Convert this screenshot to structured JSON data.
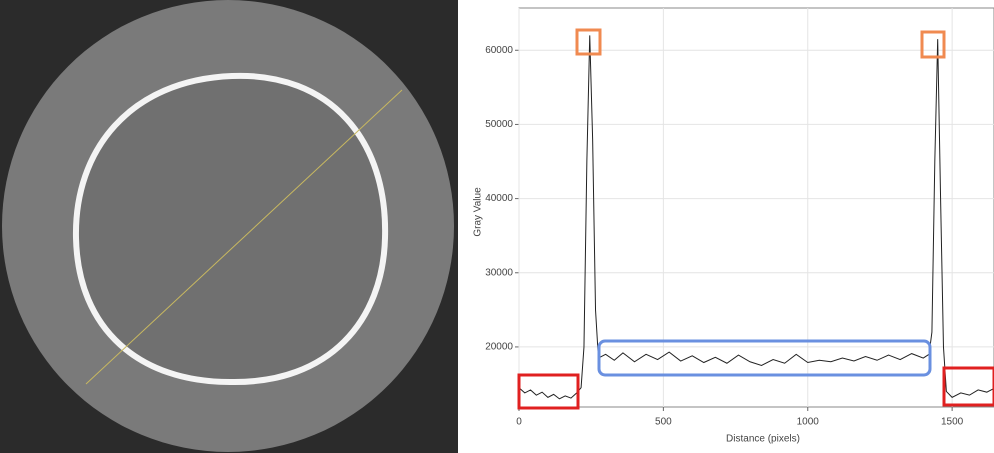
{
  "chart_data": {
    "type": "line",
    "xlabel": "Distance (pixels)",
    "ylabel": "Gray Value",
    "x": [
      0,
      20,
      40,
      60,
      80,
      100,
      120,
      140,
      160,
      180,
      200,
      215,
      225,
      235,
      245,
      255,
      265,
      275,
      300,
      330,
      360,
      400,
      440,
      480,
      520,
      560,
      600,
      640,
      680,
      720,
      760,
      800,
      840,
      880,
      920,
      960,
      1000,
      1040,
      1080,
      1120,
      1160,
      1200,
      1240,
      1280,
      1320,
      1360,
      1400,
      1420,
      1430,
      1440,
      1450,
      1460,
      1470,
      1480,
      1500,
      1530,
      1560,
      1590,
      1620,
      1645
    ],
    "series": [
      {
        "name": "Gray Value",
        "color": "#222222",
        "values": [
          14500,
          13800,
          14200,
          13500,
          13900,
          13200,
          13600,
          13000,
          13400,
          13100,
          13800,
          14500,
          20000,
          45000,
          62000,
          48000,
          25000,
          18500,
          19000,
          18200,
          19200,
          18000,
          19000,
          18300,
          19300,
          18100,
          18800,
          17900,
          18600,
          17800,
          18900,
          18000,
          17500,
          18300,
          17800,
          19000,
          17900,
          18200,
          18000,
          18500,
          18100,
          18700,
          18200,
          18900,
          18300,
          19100,
          18500,
          19000,
          22000,
          45000,
          61500,
          40000,
          20000,
          14000,
          13200,
          13800,
          13500,
          14200,
          13900,
          14400
        ]
      }
    ],
    "xlim": [
      0,
      1645
    ],
    "ylim": [
      11900,
      65700
    ],
    "xticks": [
      0,
      500,
      1000,
      1500
    ],
    "yticks": [
      20000,
      30000,
      40000,
      50000,
      60000
    ],
    "grid": true
  }
}
